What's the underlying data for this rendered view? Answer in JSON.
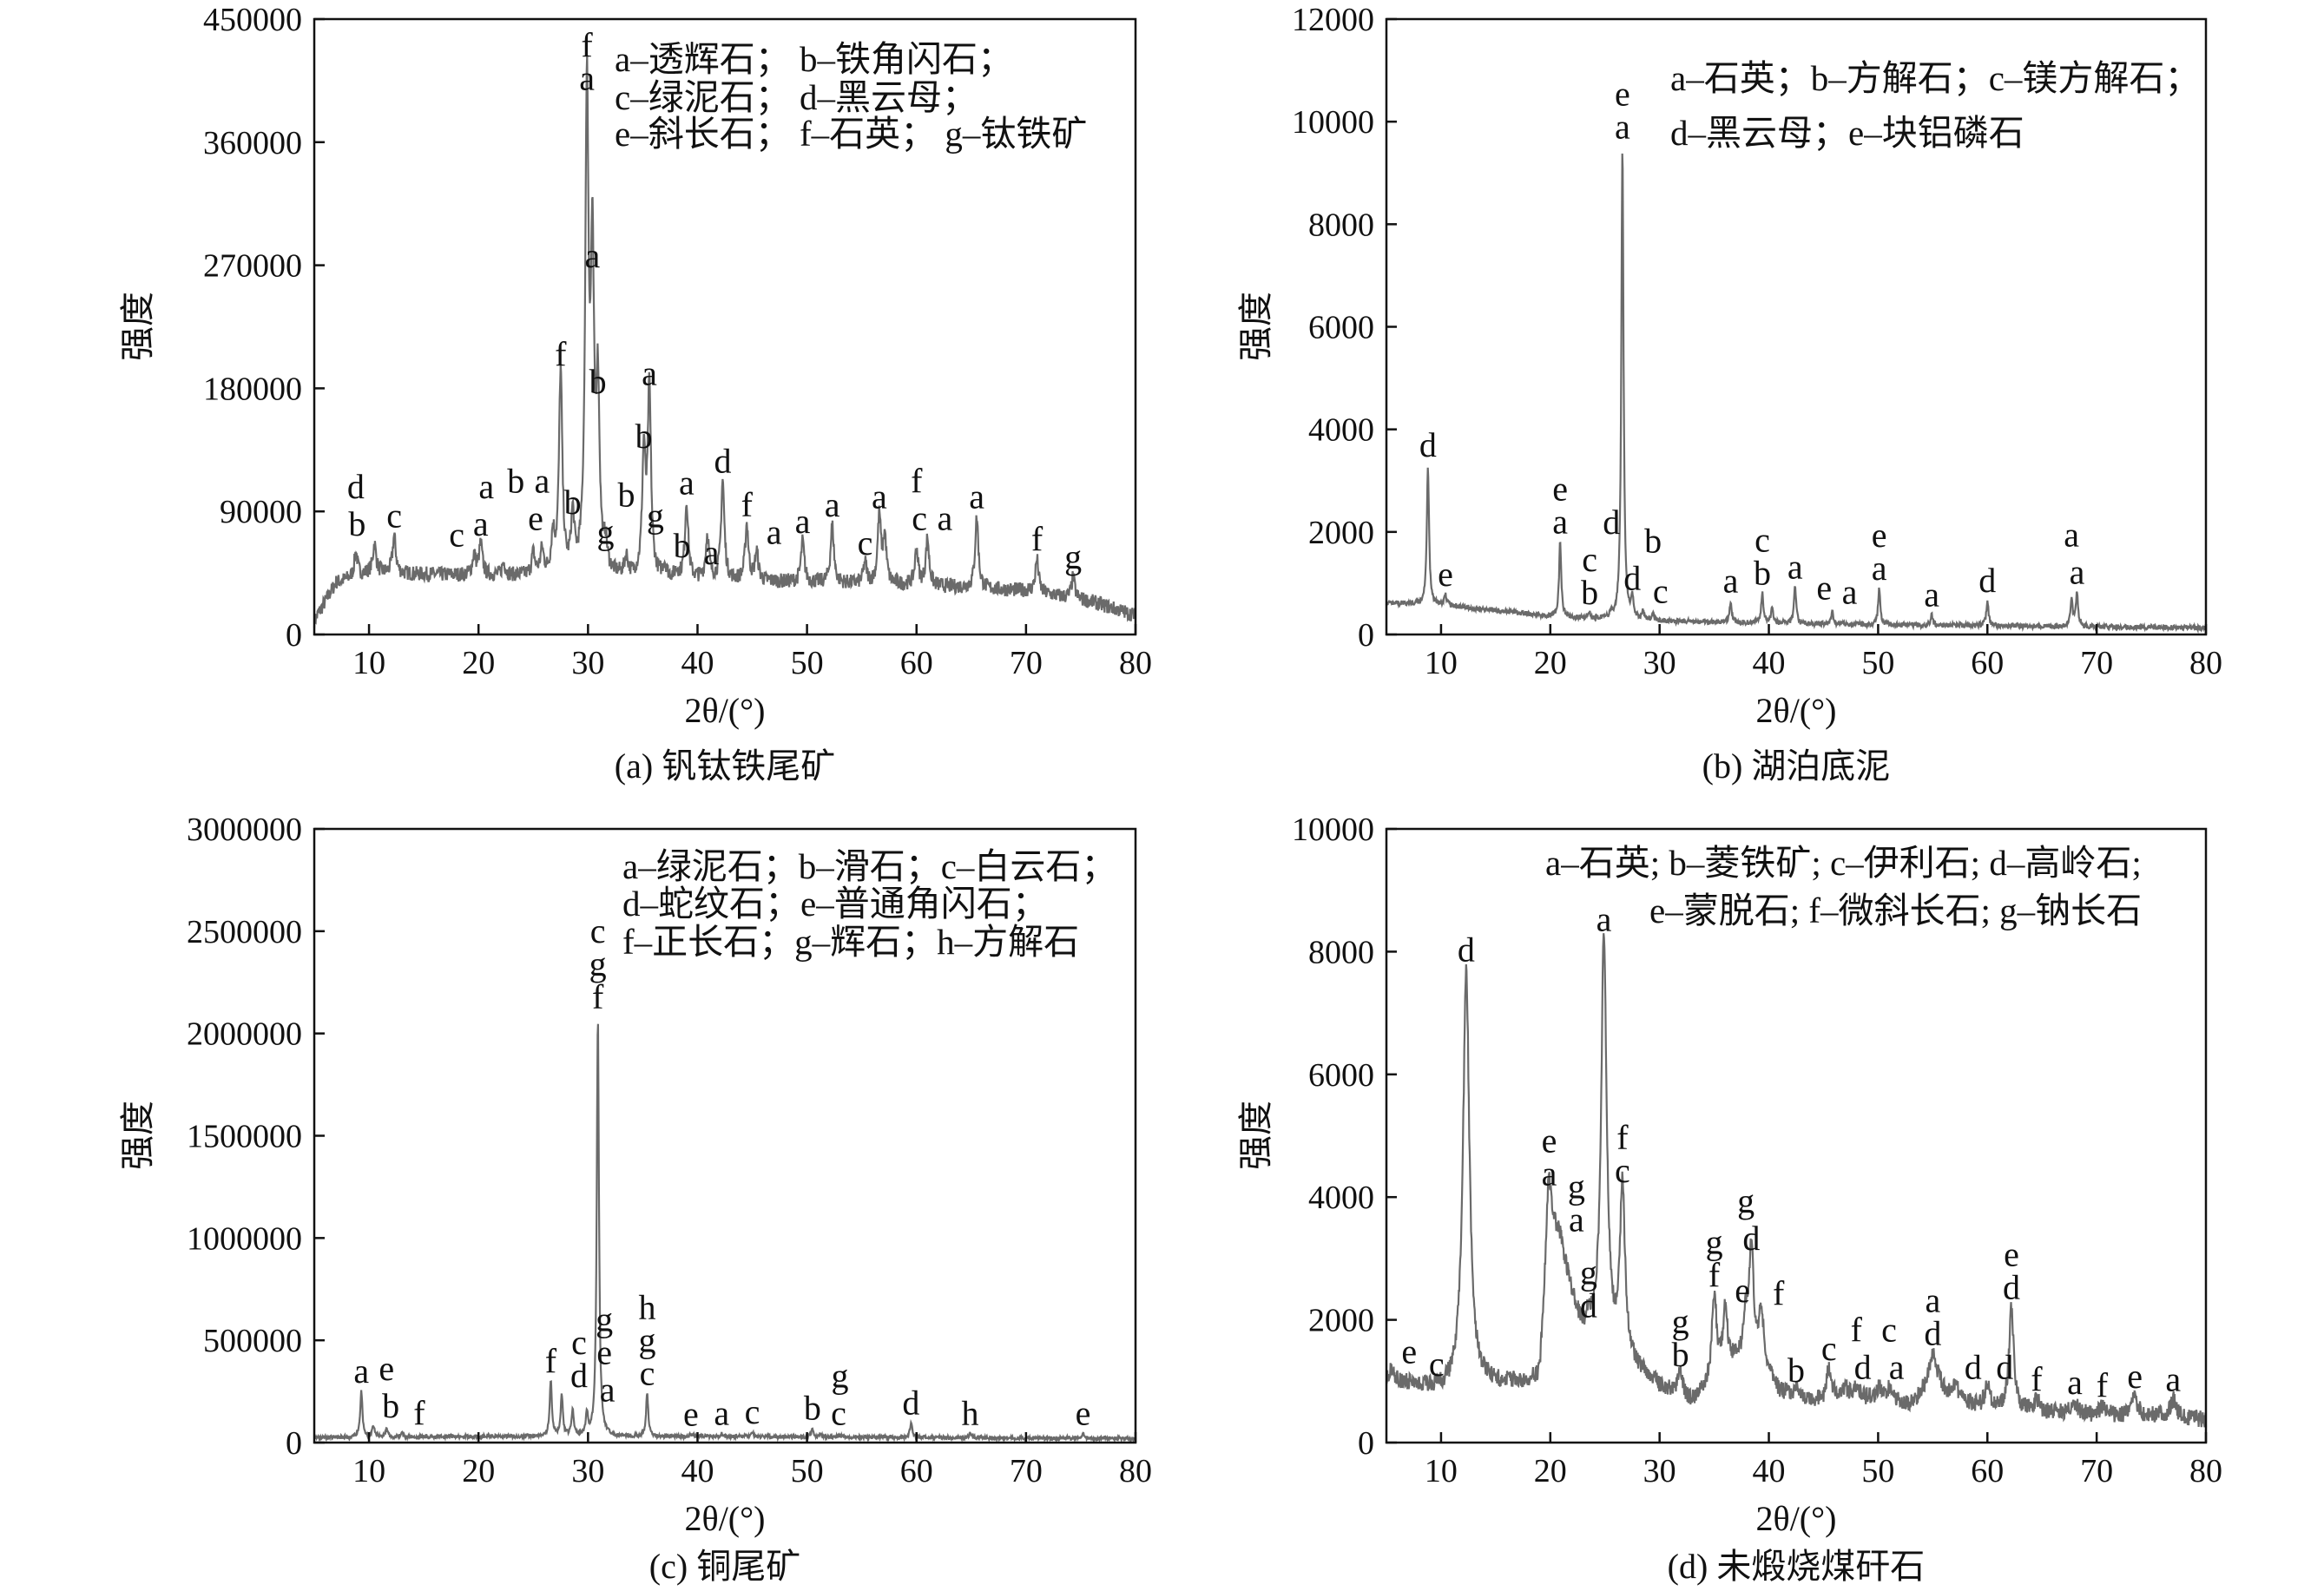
{
  "chart_data": [
    {
      "type": "line",
      "title": "(a) 钒钛铁尾矿",
      "xlabel": "2θ/(°)",
      "ylabel": "强度",
      "xlim": [
        5,
        80
      ],
      "ylim": [
        0,
        450000
      ],
      "xticks": [
        10,
        20,
        30,
        40,
        50,
        60,
        70,
        80
      ],
      "yticks": [
        0,
        90000,
        180000,
        270000,
        360000,
        450000
      ],
      "legend": [
        "a–透辉石； b–铁角闪石；",
        "c–绿泥石； d–黑云母；",
        "e–斜长石； f–石英； g–钛铁矿"
      ],
      "baseline": [
        [
          5,
          10000
        ],
        [
          7,
          38000
        ],
        [
          10,
          45000
        ],
        [
          20,
          43000
        ],
        [
          30,
          42000
        ],
        [
          40,
          40000
        ],
        [
          50,
          38000
        ],
        [
          60,
          36000
        ],
        [
          70,
          32000
        ],
        [
          76,
          24000
        ],
        [
          80,
          14000
        ]
      ],
      "peaks": [
        {
          "x": 8.8,
          "y": 60000,
          "label": "d"
        },
        {
          "x": 10.5,
          "y": 66000,
          "label": "b"
        },
        {
          "x": 12.3,
          "y": 72000,
          "label": "c"
        },
        {
          "x": 19.6,
          "y": 58000,
          "label": "c"
        },
        {
          "x": 20.2,
          "y": 66000,
          "label": "a"
        },
        {
          "x": 22.3,
          "y": 52000,
          "label": "a"
        },
        {
          "x": 25.0,
          "y": 58000,
          "label": "b"
        },
        {
          "x": 25.8,
          "y": 60000,
          "label": "a"
        },
        {
          "x": 26.8,
          "y": 70000,
          "label": "e"
        },
        {
          "x": 27.5,
          "y": 190000,
          "label": "f"
        },
        {
          "x": 28.6,
          "y": 82000,
          "label": "b"
        },
        {
          "x": 29.9,
          "y": 392000,
          "label": "f\na"
        },
        {
          "x": 30.4,
          "y": 262000,
          "label": "a"
        },
        {
          "x": 30.9,
          "y": 170000,
          "label": "b"
        },
        {
          "x": 31.6,
          "y": 60000,
          "label": "g"
        },
        {
          "x": 33.5,
          "y": 55000,
          "label": "b"
        },
        {
          "x": 35.1,
          "y": 130000,
          "label": "b"
        },
        {
          "x": 35.6,
          "y": 176000,
          "label": "a"
        },
        {
          "x": 37.0,
          "y": 50000,
          "label": "b"
        },
        {
          "x": 38.1,
          "y": 45000,
          "label": "a"
        },
        {
          "x": 39.0,
          "y": 96000,
          "label": "a"
        },
        {
          "x": 40.9,
          "y": 72000,
          "label": "g"
        },
        {
          "x": 42.3,
          "y": 112000,
          "label": "d"
        },
        {
          "x": 44.5,
          "y": 80000,
          "label": "f"
        },
        {
          "x": 45.4,
          "y": 60000,
          "label": "a"
        },
        {
          "x": 49.6,
          "y": 68000,
          "label": "a"
        },
        {
          "x": 52.3,
          "y": 80000,
          "label": "a"
        },
        {
          "x": 55.3,
          "y": 52000,
          "label": "c"
        },
        {
          "x": 56.6,
          "y": 86000,
          "label": "a"
        },
        {
          "x": 57.1,
          "y": 70000,
          "label": "c"
        },
        {
          "x": 60.0,
          "y": 62000,
          "label": "f"
        },
        {
          "x": 61.0,
          "y": 70000,
          "label": "a"
        },
        {
          "x": 65.5,
          "y": 86000,
          "label": "a"
        },
        {
          "x": 71.0,
          "y": 55000,
          "label": "f"
        },
        {
          "x": 74.3,
          "y": 42000,
          "label": "g"
        }
      ]
    },
    {
      "type": "line",
      "title": "(b) 湖泊底泥",
      "xlabel": "2θ/(°)",
      "ylabel": "强度",
      "xlim": [
        5,
        80
      ],
      "ylim": [
        0,
        12000
      ],
      "xticks": [
        10,
        20,
        30,
        40,
        50,
        60,
        70,
        80
      ],
      "yticks": [
        0,
        2000,
        4000,
        6000,
        8000,
        10000,
        12000
      ],
      "legend": [
        "a–石英；b–方解石；c–镁方解石；",
        "d–黑云母；e–块铝磷石"
      ],
      "baseline": [
        [
          5,
          620
        ],
        [
          10,
          580
        ],
        [
          15,
          470
        ],
        [
          20,
          350
        ],
        [
          25,
          300
        ],
        [
          30,
          260
        ],
        [
          40,
          220
        ],
        [
          50,
          190
        ],
        [
          60,
          170
        ],
        [
          70,
          150
        ],
        [
          80,
          130
        ]
      ],
      "peaks": [
        {
          "x": 8.8,
          "y": 3300,
          "label": "d"
        },
        {
          "x": 10.4,
          "y": 780,
          "label": "e"
        },
        {
          "x": 20.9,
          "y": 1800,
          "label": "e\na"
        },
        {
          "x": 23.6,
          "y": 420,
          "label": "c\nb"
        },
        {
          "x": 25.6,
          "y": 380,
          "label": "d"
        },
        {
          "x": 26.6,
          "y": 9500,
          "label": "e\na"
        },
        {
          "x": 27.5,
          "y": 700,
          "label": "d"
        },
        {
          "x": 28.5,
          "y": 450,
          "label": "c"
        },
        {
          "x": 29.4,
          "y": 380,
          "label": "b"
        },
        {
          "x": 36.5,
          "y": 650,
          "label": "a"
        },
        {
          "x": 39.4,
          "y": 800,
          "label": "c\nb"
        },
        {
          "x": 40.3,
          "y": 520,
          "label": "e"
        },
        {
          "x": 42.4,
          "y": 920,
          "label": "a"
        },
        {
          "x": 45.8,
          "y": 430,
          "label": "a"
        },
        {
          "x": 50.1,
          "y": 900,
          "label": "e\na"
        },
        {
          "x": 54.9,
          "y": 380,
          "label": "a"
        },
        {
          "x": 60.0,
          "y": 660,
          "label": "d"
        },
        {
          "x": 67.7,
          "y": 700,
          "label": "a"
        },
        {
          "x": 68.2,
          "y": 820,
          "label": "a"
        }
      ]
    },
    {
      "type": "line",
      "title": "(c) 铜尾矿",
      "xlabel": "2θ/(°)",
      "ylabel": "强度",
      "xlim": [
        5,
        80
      ],
      "ylim": [
        0,
        3000000
      ],
      "xticks": [
        10,
        20,
        30,
        40,
        50,
        60,
        70,
        80
      ],
      "yticks": [
        0,
        500000,
        1000000,
        1500000,
        2000000,
        2500000,
        3000000
      ],
      "legend": [
        "a–绿泥石；b–滑石；c–白云石；",
        "d–蛇纹石；e–普通角闪石；",
        "f–正长石；g–辉石；h–方解石"
      ],
      "baseline": [
        [
          5,
          25000
        ],
        [
          20,
          30000
        ],
        [
          40,
          30000
        ],
        [
          60,
          25000
        ],
        [
          80,
          20000
        ]
      ],
      "peaks": [
        {
          "x": 9.3,
          "y": 250000,
          "label": "a"
        },
        {
          "x": 10.4,
          "y": 80000,
          "label": "b"
        },
        {
          "x": 11.6,
          "y": 70000,
          "label": "e"
        },
        {
          "x": 13.0,
          "y": 45000,
          "label": "f"
        },
        {
          "x": 26.6,
          "y": 300000,
          "label": "f"
        },
        {
          "x": 27.6,
          "y": 230000,
          "label": "c\nd"
        },
        {
          "x": 28.6,
          "y": 160000,
          "label": "a"
        },
        {
          "x": 29.9,
          "y": 130000,
          "label": "g\ne"
        },
        {
          "x": 30.9,
          "y": 2080000,
          "label": "c\ng\nf"
        },
        {
          "x": 35.4,
          "y": 240000,
          "label": "h\ng\nc"
        },
        {
          "x": 39.4,
          "y": 40000,
          "label": "e"
        },
        {
          "x": 42.2,
          "y": 45000,
          "label": "a"
        },
        {
          "x": 45.0,
          "y": 50000,
          "label": "c"
        },
        {
          "x": 50.5,
          "y": 70000,
          "label": "b"
        },
        {
          "x": 51.3,
          "y": 45000,
          "label": "c"
        },
        {
          "x": 53.0,
          "y": 35000,
          "label": "g"
        },
        {
          "x": 59.5,
          "y": 95000,
          "label": "d"
        },
        {
          "x": 64.9,
          "y": 45000,
          "label": "h"
        },
        {
          "x": 75.2,
          "y": 45000,
          "label": "e"
        }
      ]
    },
    {
      "type": "line",
      "title": "(d) 未煅烧煤矸石",
      "xlabel": "2θ/(°)",
      "ylabel": "强度",
      "xlim": [
        5,
        80
      ],
      "ylim": [
        0,
        10000
      ],
      "xticks": [
        10,
        20,
        30,
        40,
        50,
        60,
        70,
        80
      ],
      "yticks": [
        0,
        2000,
        4000,
        6000,
        8000,
        10000
      ],
      "legend": [
        "a–石英; b–菱铁矿; c–伊利石; d–高岭石;",
        "e–蒙脱石; f–微斜长石; g–钠长石"
      ],
      "baseline": [
        [
          5,
          1050
        ],
        [
          8,
          900
        ],
        [
          10,
          850
        ],
        [
          13,
          950
        ],
        [
          19,
          950
        ],
        [
          19.8,
          2900
        ],
        [
          21.5,
          2500
        ],
        [
          23,
          1700
        ],
        [
          25,
          1500
        ],
        [
          27,
          1300
        ],
        [
          30,
          900
        ],
        [
          33,
          650
        ],
        [
          34.5,
          900
        ],
        [
          37,
          1300
        ],
        [
          39.5,
          1100
        ],
        [
          41,
          800
        ],
        [
          45,
          650
        ],
        [
          47,
          750
        ],
        [
          50,
          700
        ],
        [
          53,
          600
        ],
        [
          55,
          900
        ],
        [
          57,
          700
        ],
        [
          60,
          550
        ],
        [
          65,
          500
        ],
        [
          70,
          450
        ],
        [
          75,
          450
        ],
        [
          80,
          380
        ]
      ],
      "peaks": [
        {
          "x": 5.5,
          "y": 1150,
          "label": "e"
        },
        {
          "x": 8.0,
          "y": 950,
          "label": "c"
        },
        {
          "x": 12.3,
          "y": 7700,
          "label": "d"
        },
        {
          "x": 19.9,
          "y": 4050,
          "label": "e\na"
        },
        {
          "x": 20.8,
          "y": 3300,
          "label": "g\na"
        },
        {
          "x": 23.5,
          "y": 1900,
          "label": "g\nd"
        },
        {
          "x": 24.9,
          "y": 8200,
          "label": "a"
        },
        {
          "x": 26.6,
          "y": 4100,
          "label": "f\nc"
        },
        {
          "x": 31.9,
          "y": 1100,
          "label": "g\nb"
        },
        {
          "x": 35.0,
          "y": 2400,
          "label": "g\nf"
        },
        {
          "x": 36.0,
          "y": 2150,
          "label": "e"
        },
        {
          "x": 37.9,
          "y": 1900,
          "label": "g"
        },
        {
          "x": 38.4,
          "y": 3000,
          "label": "d"
        },
        {
          "x": 39.3,
          "y": 2100,
          "label": "f"
        },
        {
          "x": 42.5,
          "y": 850,
          "label": "b"
        },
        {
          "x": 45.5,
          "y": 1200,
          "label": "c"
        },
        {
          "x": 47.0,
          "y": 900,
          "label": "d"
        },
        {
          "x": 48.0,
          "y": 900,
          "label": "f"
        },
        {
          "x": 50.1,
          "y": 900,
          "label": "a"
        },
        {
          "x": 51.0,
          "y": 850,
          "label": "c"
        },
        {
          "x": 55.0,
          "y": 1450,
          "label": "a\nd"
        },
        {
          "x": 57.1,
          "y": 900,
          "label": "d"
        },
        {
          "x": 60.0,
          "y": 900,
          "label": "d"
        },
        {
          "x": 62.2,
          "y": 2200,
          "label": "e\nd"
        },
        {
          "x": 64.5,
          "y": 700,
          "label": "f"
        },
        {
          "x": 68.0,
          "y": 650,
          "label": "a"
        },
        {
          "x": 70.5,
          "y": 600,
          "label": "f"
        },
        {
          "x": 73.5,
          "y": 750,
          "label": "e"
        },
        {
          "x": 77.0,
          "y": 700,
          "label": "a"
        }
      ]
    }
  ],
  "colors": {
    "line": "#6a6a6a",
    "axis": "#111111"
  }
}
